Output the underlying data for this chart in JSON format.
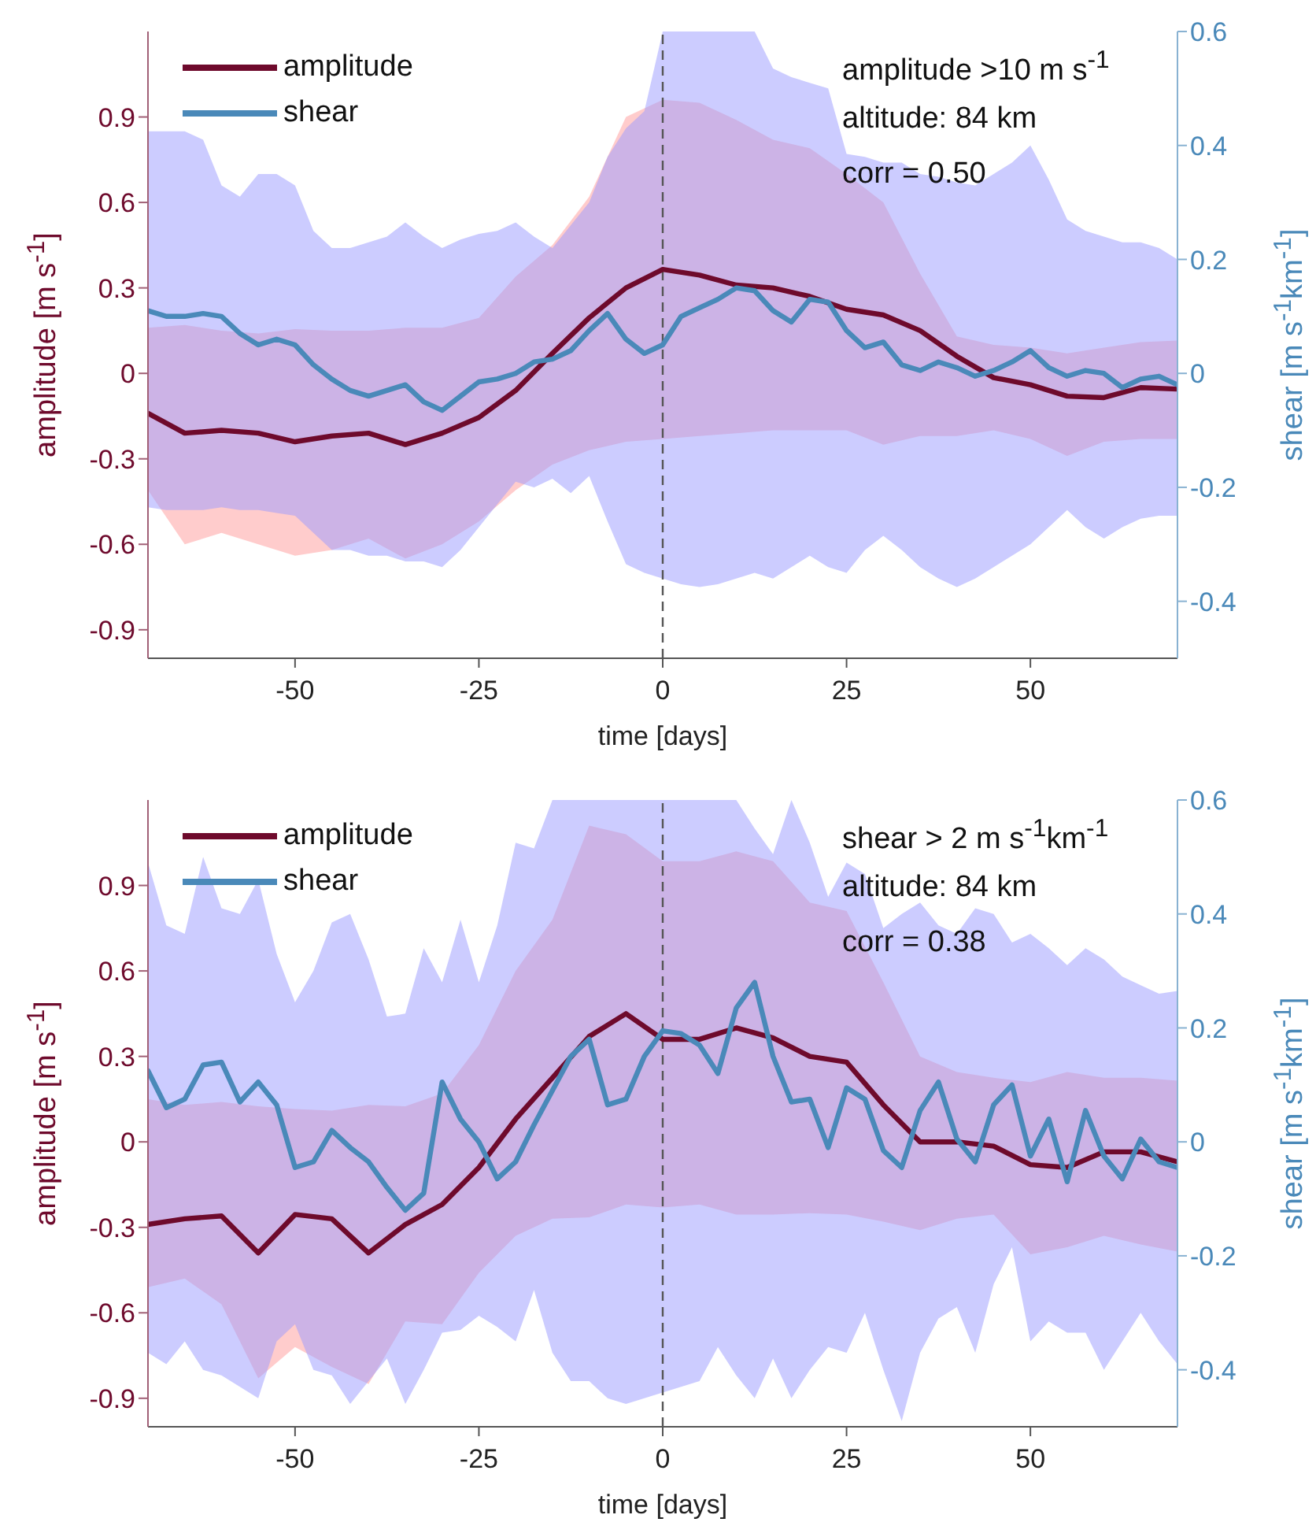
{
  "chart_data": [
    {
      "type": "line",
      "xlabel": "time [days]",
      "ylabel": "amplitude [m s$^{-1}$]",
      "y2label": "shear [m s$^{-1}$km$^{-1}$]",
      "xlim": [
        -70,
        70
      ],
      "xticks": [
        -50,
        -25,
        0,
        25,
        50
      ],
      "ylim": [
        -1,
        1.2
      ],
      "yticks": [
        -0.9,
        -0.6,
        -0.3,
        0,
        0.3,
        0.6,
        0.9
      ],
      "y2lim": [
        -0.5,
        0.6
      ],
      "y2ticks": [
        -0.4,
        -0.2,
        0,
        0.2,
        0.4,
        0.6
      ],
      "legend": "top left",
      "line_style": "solid",
      "ref_lines": [
        {
          "axis": "x",
          "value": 0,
          "color": "#555555",
          "line_style": "dashed"
        }
      ],
      "annotations": [
        "amplitude >10 m s$^{-1}$",
        "altitude: 84 km",
        "corr = 0.50"
      ],
      "series": [
        {
          "name": "amplitude",
          "color": "#6e0a2c",
          "x": [
            -70,
            -65,
            -60,
            -55,
            -50,
            -45,
            -40,
            -35,
            -30,
            -25,
            -20,
            -15,
            -10,
            -5,
            0,
            5,
            10,
            15,
            20,
            25,
            30,
            35,
            40,
            45,
            50,
            55,
            60,
            65,
            70
          ],
          "values": [
            -0.14,
            -0.21,
            -0.2,
            -0.21,
            -0.24,
            -0.22,
            -0.21,
            -0.25,
            -0.21,
            -0.155,
            -0.06,
            0.07,
            0.195,
            0.3,
            0.365,
            0.345,
            0.31,
            0.3,
            0.27,
            0.225,
            0.205,
            0.15,
            0.06,
            -0.015,
            -0.04,
            -0.08,
            -0.085,
            -0.05,
            -0.055
          ],
          "lower": [
            -0.41,
            -0.6,
            -0.56,
            -0.6,
            -0.64,
            -0.62,
            -0.58,
            -0.65,
            -0.6,
            -0.52,
            -0.41,
            -0.32,
            -0.27,
            -0.24,
            -0.23,
            -0.22,
            -0.21,
            -0.2,
            -0.2,
            -0.2,
            -0.25,
            -0.22,
            -0.22,
            -0.2,
            -0.23,
            -0.29,
            -0.24,
            -0.23,
            -0.23
          ],
          "upper": [
            0.16,
            0.17,
            0.15,
            0.14,
            0.155,
            0.15,
            0.15,
            0.16,
            0.16,
            0.195,
            0.34,
            0.45,
            0.62,
            0.9,
            0.96,
            0.95,
            0.89,
            0.82,
            0.79,
            0.7,
            0.6,
            0.35,
            0.13,
            0.1,
            0.09,
            0.07,
            0.09,
            0.11,
            0.115
          ]
        },
        {
          "name": "shear",
          "color": "#4a89b9",
          "axis": "y2",
          "x": [
            -70,
            -67.5,
            -65,
            -62.5,
            -60,
            -57.5,
            -55,
            -52.5,
            -50,
            -47.5,
            -45,
            -42.5,
            -40,
            -37.5,
            -35,
            -32.5,
            -30,
            -27.5,
            -25,
            -22.5,
            -20,
            -17.5,
            -15,
            -12.5,
            -10,
            -7.5,
            -5,
            -2.5,
            0,
            2.5,
            5,
            7.5,
            10,
            12.5,
            15,
            17.5,
            20,
            22.5,
            25,
            27.5,
            30,
            32.5,
            35,
            37.5,
            40,
            42.5,
            45,
            47.5,
            50,
            52.5,
            55,
            57.5,
            60,
            62.5,
            65,
            67.5,
            70
          ],
          "values": [
            0.11,
            0.1,
            0.1,
            0.105,
            0.1,
            0.07,
            0.05,
            0.06,
            0.05,
            0.015,
            -0.01,
            -0.03,
            -0.04,
            -0.03,
            -0.02,
            -0.05,
            -0.065,
            -0.04,
            -0.015,
            -0.01,
            0,
            0.02,
            0.025,
            0.04,
            0.075,
            0.105,
            0.06,
            0.035,
            0.05,
            0.1,
            0.115,
            0.13,
            0.15,
            0.145,
            0.11,
            0.09,
            0.13,
            0.125,
            0.075,
            0.045,
            0.055,
            0.015,
            0.005,
            0.02,
            0.01,
            -0.005,
            0.005,
            0.02,
            0.04,
            0.01,
            -0.005,
            0.005,
            0,
            -0.025,
            -0.01,
            -0.005,
            -0.02
          ],
          "lower": [
            -0.235,
            -0.24,
            -0.24,
            -0.24,
            -0.235,
            -0.24,
            -0.24,
            -0.245,
            -0.25,
            -0.28,
            -0.31,
            -0.31,
            -0.32,
            -0.32,
            -0.33,
            -0.33,
            -0.34,
            -0.31,
            -0.27,
            -0.23,
            -0.19,
            -0.2,
            -0.185,
            -0.21,
            -0.18,
            -0.26,
            -0.335,
            -0.35,
            -0.36,
            -0.37,
            -0.375,
            -0.37,
            -0.36,
            -0.35,
            -0.36,
            -0.34,
            -0.32,
            -0.34,
            -0.35,
            -0.31,
            -0.285,
            -0.31,
            -0.34,
            -0.36,
            -0.375,
            -0.36,
            -0.34,
            -0.32,
            -0.3,
            -0.27,
            -0.24,
            -0.27,
            -0.29,
            -0.27,
            -0.255,
            -0.25,
            -0.25
          ],
          "upper": [
            0.425,
            0.425,
            0.425,
            0.41,
            0.33,
            0.31,
            0.35,
            0.35,
            0.33,
            0.25,
            0.22,
            0.22,
            0.23,
            0.24,
            0.265,
            0.24,
            0.22,
            0.235,
            0.245,
            0.25,
            0.265,
            0.24,
            0.22,
            0.26,
            0.3,
            0.38,
            0.43,
            0.46,
            0.6,
            0.6,
            0.6,
            0.6,
            0.6,
            0.6,
            0.535,
            0.52,
            0.51,
            0.5,
            0.385,
            0.38,
            0.37,
            0.37,
            0.35,
            0.345,
            0.335,
            0.33,
            0.35,
            0.37,
            0.4,
            0.34,
            0.27,
            0.25,
            0.24,
            0.23,
            0.23,
            0.22,
            0.2
          ]
        }
      ]
    },
    {
      "type": "line",
      "xlabel": "time [days]",
      "ylabel": "amplitude [m s$^{-1}$]",
      "y2label": "shear [m s$^{-1}$km$^{-1}$]",
      "xlim": [
        -70,
        70
      ],
      "xticks": [
        -50,
        -25,
        0,
        25,
        50
      ],
      "ylim": [
        -1,
        1.2
      ],
      "yticks": [
        -0.9,
        -0.6,
        -0.3,
        0,
        0.3,
        0.6,
        0.9
      ],
      "y2lim": [
        -0.5,
        0.6
      ],
      "y2ticks": [
        -0.4,
        -0.2,
        0,
        0.2,
        0.4,
        0.6
      ],
      "legend": "top left",
      "line_style": "solid",
      "ref_lines": [
        {
          "axis": "x",
          "value": 0,
          "color": "#555555",
          "line_style": "dashed"
        }
      ],
      "annotations": [
        "shear > 2 m s$^{-1}$km$^{-1}$",
        "altitude: 84 km",
        "corr = 0.38"
      ],
      "series": [
        {
          "name": "amplitude",
          "color": "#6e0a2c",
          "x": [
            -70,
            -65,
            -60,
            -55,
            -50,
            -45,
            -40,
            -35,
            -30,
            -25,
            -20,
            -15,
            -10,
            -5,
            0,
            5,
            10,
            15,
            20,
            25,
            30,
            35,
            40,
            45,
            50,
            55,
            60,
            65,
            70
          ],
          "values": [
            -0.29,
            -0.27,
            -0.26,
            -0.39,
            -0.255,
            -0.27,
            -0.39,
            -0.29,
            -0.22,
            -0.09,
            0.08,
            0.225,
            0.37,
            0.45,
            0.36,
            0.36,
            0.4,
            0.365,
            0.3,
            0.28,
            0.13,
            0,
            0,
            -0.015,
            -0.08,
            -0.09,
            -0.035,
            -0.035,
            -0.07
          ],
          "lower": [
            -0.51,
            -0.48,
            -0.57,
            -0.83,
            -0.72,
            -0.79,
            -0.85,
            -0.63,
            -0.64,
            -0.46,
            -0.33,
            -0.27,
            -0.265,
            -0.22,
            -0.23,
            -0.22,
            -0.255,
            -0.255,
            -0.25,
            -0.255,
            -0.28,
            -0.31,
            -0.27,
            -0.255,
            -0.395,
            -0.37,
            -0.33,
            -0.36,
            -0.385
          ],
          "upper": [
            0.15,
            0.13,
            0.14,
            0.125,
            0.115,
            0.11,
            0.13,
            0.125,
            0.17,
            0.34,
            0.6,
            0.78,
            1.11,
            1.08,
            0.985,
            0.985,
            1.02,
            0.985,
            0.84,
            0.81,
            0.56,
            0.3,
            0.245,
            0.225,
            0.21,
            0.245,
            0.225,
            0.225,
            0.215
          ]
        },
        {
          "name": "shear",
          "color": "#4a89b9",
          "axis": "y2",
          "x": [
            -70,
            -67.5,
            -65,
            -62.5,
            -60,
            -57.5,
            -55,
            -52.5,
            -50,
            -47.5,
            -45,
            -42.5,
            -40,
            -37.5,
            -35,
            -32.5,
            -30,
            -27.5,
            -25,
            -22.5,
            -20,
            -17.5,
            -15,
            -12.5,
            -10,
            -7.5,
            -5,
            -2.5,
            0,
            2.5,
            5,
            7.5,
            10,
            12.5,
            15,
            17.5,
            20,
            22.5,
            25,
            27.5,
            30,
            32.5,
            35,
            37.5,
            40,
            42.5,
            45,
            47.5,
            50,
            52.5,
            55,
            57.5,
            60,
            62.5,
            65,
            67.5,
            70
          ],
          "values": [
            0.125,
            0.06,
            0.075,
            0.135,
            0.14,
            0.07,
            0.105,
            0.065,
            -0.045,
            -0.035,
            0.02,
            -0.01,
            -0.035,
            -0.08,
            -0.12,
            -0.09,
            0.105,
            0.04,
            0,
            -0.065,
            -0.035,
            0.03,
            0.09,
            0.15,
            0.18,
            0.065,
            0.075,
            0.15,
            0.195,
            0.19,
            0.17,
            0.12,
            0.235,
            0.28,
            0.15,
            0.07,
            0.075,
            -0.01,
            0.095,
            0.075,
            -0.015,
            -0.045,
            0.055,
            0.105,
            0.005,
            -0.035,
            0.065,
            0.1,
            -0.025,
            0.04,
            -0.07,
            0.055,
            -0.025,
            -0.065,
            0.005,
            -0.035,
            -0.045
          ],
          "lower": [
            -0.37,
            -0.39,
            -0.35,
            -0.4,
            -0.41,
            -0.43,
            -0.45,
            -0.35,
            -0.32,
            -0.4,
            -0.41,
            -0.46,
            -0.42,
            -0.38,
            -0.46,
            -0.4,
            -0.335,
            -0.33,
            -0.305,
            -0.325,
            -0.35,
            -0.26,
            -0.37,
            -0.42,
            -0.42,
            -0.45,
            -0.46,
            -0.45,
            -0.44,
            -0.43,
            -0.42,
            -0.36,
            -0.41,
            -0.45,
            -0.38,
            -0.45,
            -0.4,
            -0.36,
            -0.37,
            -0.3,
            -0.4,
            -0.49,
            -0.37,
            -0.31,
            -0.29,
            -0.37,
            -0.25,
            -0.185,
            -0.35,
            -0.315,
            -0.335,
            -0.335,
            -0.4,
            -0.35,
            -0.3,
            -0.35,
            -0.39
          ],
          "upper": [
            0.49,
            0.38,
            0.365,
            0.5,
            0.41,
            0.4,
            0.46,
            0.33,
            0.245,
            0.3,
            0.385,
            0.4,
            0.32,
            0.22,
            0.225,
            0.34,
            0.28,
            0.39,
            0.28,
            0.38,
            0.525,
            0.515,
            0.6,
            0.6,
            0.6,
            0.6,
            0.6,
            0.6,
            0.6,
            0.6,
            0.6,
            0.6,
            0.6,
            0.55,
            0.505,
            0.6,
            0.525,
            0.43,
            0.49,
            0.47,
            0.375,
            0.4,
            0.42,
            0.38,
            0.365,
            0.41,
            0.4,
            0.35,
            0.365,
            0.34,
            0.31,
            0.34,
            0.32,
            0.29,
            0.275,
            0.26,
            0.265
          ]
        }
      ]
    }
  ]
}
